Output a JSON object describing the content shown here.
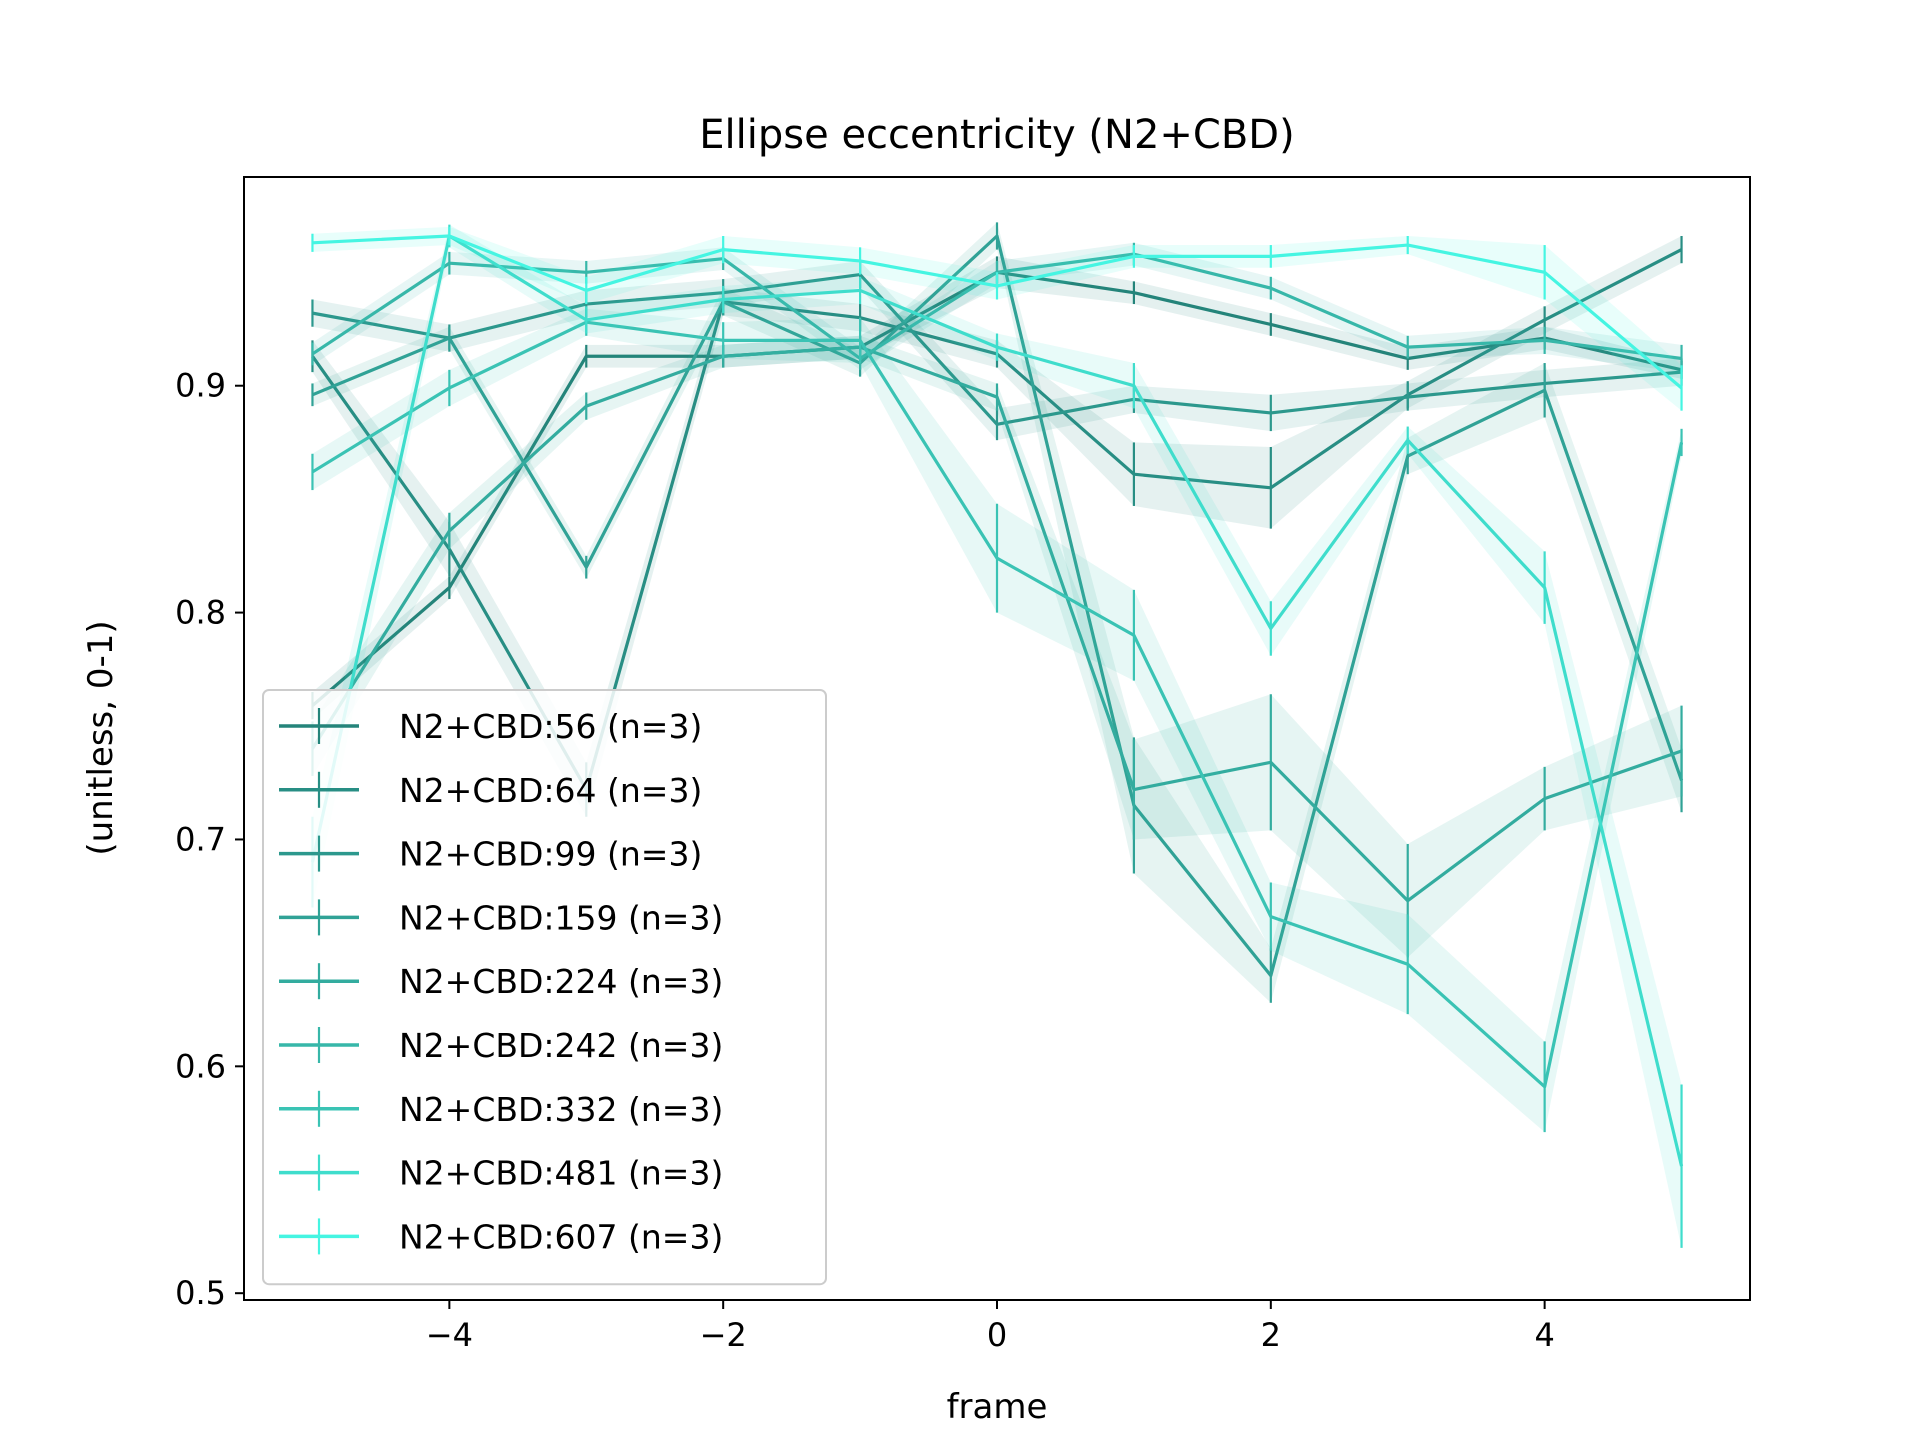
{
  "chart_data": {
    "type": "line",
    "title": "Ellipse eccentricity (N2+CBD)",
    "xlabel": "frame",
    "ylabel": "(unitless, 0-1)",
    "xlim": [
      -5.5,
      5.5
    ],
    "ylim": [
      0.497,
      0.992
    ],
    "xticks": [
      -4,
      -2,
      0,
      2,
      4
    ],
    "xtick_labels": [
      "−4",
      "−2",
      "0",
      "2",
      "4"
    ],
    "yticks": [
      0.5,
      0.6,
      0.7,
      0.8,
      0.9
    ],
    "ytick_labels": [
      "0.5",
      "0.6",
      "0.7",
      "0.8",
      "0.9"
    ],
    "grid": false,
    "legend_position": "lower-left",
    "x": [
      -5,
      -4,
      -3,
      -2,
      -1,
      0,
      1,
      2,
      3,
      4,
      5
    ],
    "series": [
      {
        "name": "N2+CBD:56 (n=3)",
        "color": "#24847a",
        "values": [
          0.759,
          0.811,
          0.913,
          0.913,
          0.917,
          0.95,
          0.941,
          0.927,
          0.912,
          0.921,
          0.907
        ],
        "errors": [
          0.006,
          0.005,
          0.005,
          0.005,
          0.005,
          0.007,
          0.005,
          0.005,
          0.005,
          0.005,
          0.004
        ]
      },
      {
        "name": "N2+CBD:64 (n=3)",
        "color": "#288e84",
        "values": [
          0.913,
          0.828,
          0.722,
          0.937,
          0.93,
          0.914,
          0.861,
          0.855,
          0.896,
          0.929,
          0.96
        ],
        "errors": [
          0.007,
          0.012,
          0.012,
          0.006,
          0.006,
          0.006,
          0.014,
          0.018,
          0.006,
          0.006,
          0.006
        ]
      },
      {
        "name": "N2+CBD:99 (n=3)",
        "color": "#2c988d",
        "values": [
          0.932,
          0.921,
          0.936,
          0.941,
          0.949,
          0.883,
          0.894,
          0.888,
          0.895,
          0.901,
          0.906
        ],
        "errors": [
          0.006,
          0.006,
          0.006,
          0.006,
          0.006,
          0.007,
          0.006,
          0.008,
          0.006,
          0.006,
          0.006
        ]
      },
      {
        "name": "N2+CBD:159 (n=3)",
        "color": "#30a296",
        "values": [
          0.896,
          0.921,
          0.82,
          0.937,
          0.91,
          0.966,
          0.715,
          0.64,
          0.869,
          0.898,
          0.726
        ],
        "errors": [
          0.005,
          0.005,
          0.005,
          0.006,
          0.006,
          0.006,
          0.03,
          0.012,
          0.008,
          0.012,
          0.014
        ]
      },
      {
        "name": "N2+CBD:224 (n=3)",
        "color": "#33ac9f",
        "values": [
          0.74,
          0.836,
          0.891,
          0.913,
          0.917,
          0.895,
          0.722,
          0.734,
          0.673,
          0.718,
          0.739
        ],
        "errors": [
          0.012,
          0.008,
          0.006,
          0.005,
          0.005,
          0.006,
          0.022,
          0.03,
          0.025,
          0.014,
          0.02
        ]
      },
      {
        "name": "N2+CBD:242 (n=3)",
        "color": "#37b7a9",
        "values": [
          0.914,
          0.954,
          0.95,
          0.956,
          0.912,
          0.95,
          0.958,
          0.943,
          0.917,
          0.92,
          0.912
        ],
        "errors": [
          0.005,
          0.005,
          0.005,
          0.005,
          0.005,
          0.005,
          0.005,
          0.005,
          0.005,
          0.006,
          0.006
        ]
      },
      {
        "name": "N2+CBD:332 (n=3)",
        "color": "#3ac3b4",
        "values": [
          0.862,
          0.899,
          0.928,
          0.92,
          0.92,
          0.824,
          0.79,
          0.666,
          0.645,
          0.591,
          0.875
        ],
        "errors": [
          0.008,
          0.008,
          0.006,
          0.008,
          0.01,
          0.024,
          0.02,
          0.015,
          0.022,
          0.02,
          0.006
        ]
      },
      {
        "name": "N2+CBD:481 (n=3)",
        "color": "#3fddcc",
        "values": [
          0.69,
          0.966,
          0.929,
          0.938,
          0.942,
          0.917,
          0.9,
          0.793,
          0.876,
          0.811,
          0.556
        ],
        "errors": [
          0.02,
          0.005,
          0.006,
          0.006,
          0.006,
          0.006,
          0.01,
          0.012,
          0.006,
          0.016,
          0.036
        ]
      },
      {
        "name": "N2+CBD:607 (n=3)",
        "color": "#45f5e2",
        "values": [
          0.963,
          0.966,
          0.942,
          0.96,
          0.955,
          0.944,
          0.957,
          0.957,
          0.962,
          0.95,
          0.899
        ],
        "errors": [
          0.004,
          0.004,
          0.006,
          0.006,
          0.006,
          0.006,
          0.005,
          0.005,
          0.004,
          0.012,
          0.01
        ]
      }
    ]
  }
}
